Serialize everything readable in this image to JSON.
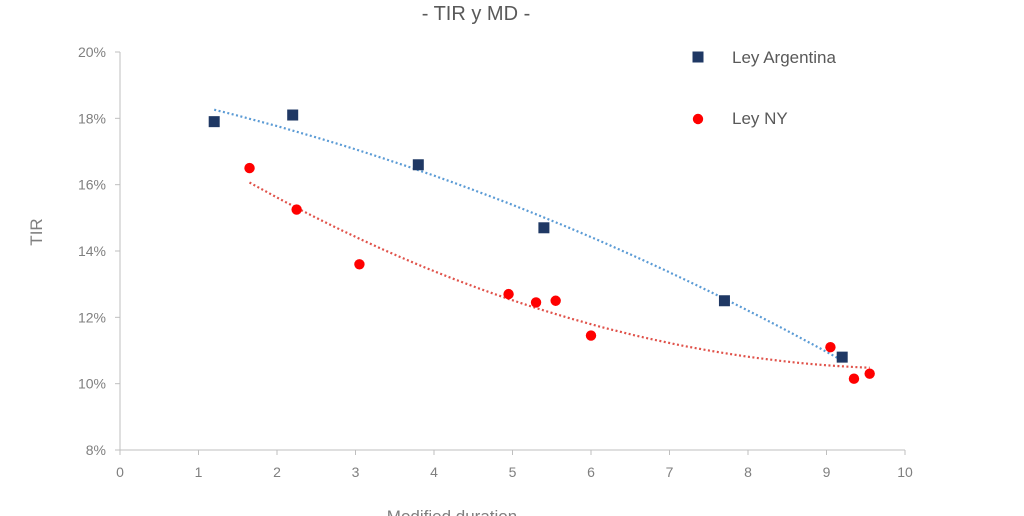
{
  "chart_data": {
    "type": "scatter",
    "title": "- TIR y MD -",
    "xlabel": "Modified duration",
    "ylabel": "TIR",
    "xlim": [
      0,
      10
    ],
    "ylim": [
      8,
      20
    ],
    "x_ticks": [
      "0",
      "1",
      "2",
      "3",
      "4",
      "5",
      "6",
      "7",
      "8",
      "9",
      "10"
    ],
    "y_ticks": [
      "8%",
      "10%",
      "12%",
      "14%",
      "16%",
      "18%",
      "20%"
    ],
    "legend_position": "top-right",
    "grid": false,
    "series": [
      {
        "name": "Ley Argentina",
        "marker": "square",
        "color": "#1f3864",
        "trend_color": "#5b9bd5",
        "points": [
          [
            1.2,
            17.9
          ],
          [
            2.2,
            18.1
          ],
          [
            3.8,
            16.6
          ],
          [
            5.4,
            14.7
          ],
          [
            7.7,
            12.5
          ],
          [
            9.2,
            10.8
          ]
        ]
      },
      {
        "name": "Ley NY",
        "marker": "circle",
        "color": "#ff0000",
        "trend_color": "#e0524a",
        "points": [
          [
            1.65,
            16.5
          ],
          [
            2.25,
            15.25
          ],
          [
            3.05,
            13.6
          ],
          [
            4.95,
            12.7
          ],
          [
            5.3,
            12.45
          ],
          [
            5.55,
            12.5
          ],
          [
            6.0,
            11.45
          ],
          [
            9.05,
            11.1
          ],
          [
            9.35,
            10.15
          ],
          [
            9.55,
            10.3
          ]
        ]
      }
    ]
  }
}
